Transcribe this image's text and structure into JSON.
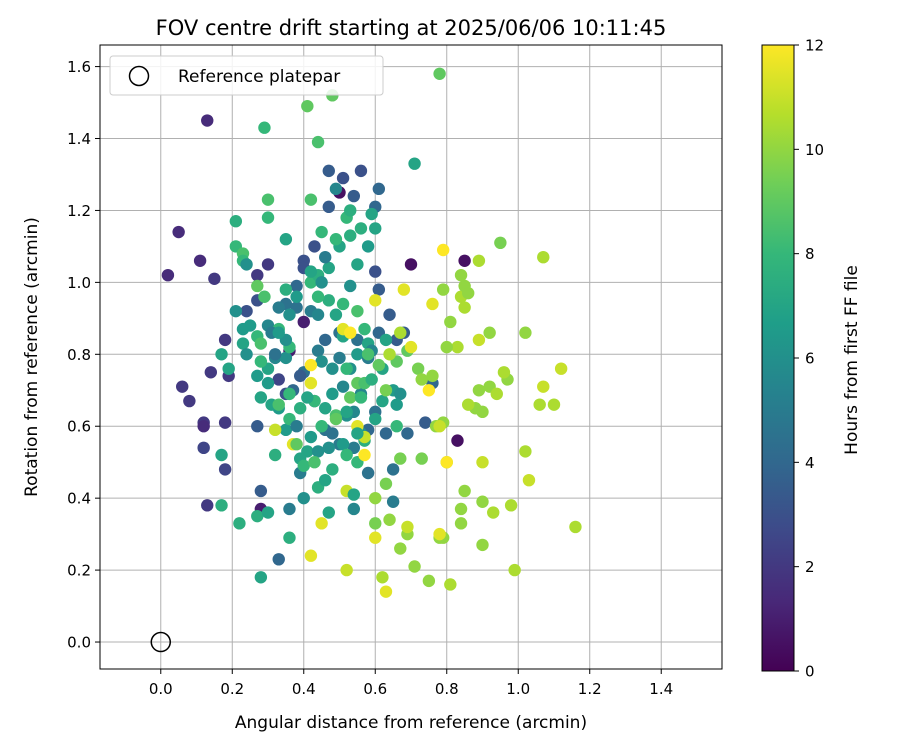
{
  "chart_data": {
    "type": "scatter",
    "title": "FOV centre drift starting at 2025/06/06 10:11:45",
    "xlabel": "Angular distance from reference (arcmin)",
    "ylabel": "Rotation from reference (arcmin)",
    "xlim": [
      -0.17,
      1.57
    ],
    "ylim": [
      -0.075,
      1.66
    ],
    "xticks": [
      "0.0",
      "0.2",
      "0.4",
      "0.6",
      "0.8",
      "1.0",
      "1.2",
      "1.4"
    ],
    "yticks": [
      "0.0",
      "0.2",
      "0.4",
      "0.6",
      "0.8",
      "1.0",
      "1.2",
      "1.4",
      "1.6"
    ],
    "grid": true,
    "legend": {
      "placement": "top-left",
      "entries": [
        "Reference platepar"
      ]
    },
    "reference_point": {
      "x": 0.0,
      "y": 0.0
    },
    "colorbar": {
      "label": "Hours from first FF file",
      "range": [
        0,
        12
      ],
      "ticks": [
        "0",
        "2",
        "4",
        "6",
        "8",
        "10",
        "12"
      ],
      "colormap": [
        "#440154",
        "#482878",
        "#3e4989",
        "#31688e",
        "#26828e",
        "#1f9e89",
        "#35b779",
        "#6ece58",
        "#b5de2b",
        "#fde725"
      ]
    },
    "points": [
      [
        0.13,
        1.45,
        1.5
      ],
      [
        0.05,
        1.14,
        1.5
      ],
      [
        0.02,
        1.02,
        1.5
      ],
      [
        0.11,
        1.06,
        1.5
      ],
      [
        0.15,
        1.01,
        2
      ],
      [
        0.18,
        0.84,
        2
      ],
      [
        0.06,
        0.71,
        2
      ],
      [
        0.08,
        0.67,
        2
      ],
      [
        0.14,
        0.75,
        2
      ],
      [
        0.19,
        0.74,
        2
      ],
      [
        0.12,
        0.61,
        2
      ],
      [
        0.12,
        0.6,
        1.5
      ],
      [
        0.18,
        0.61,
        2
      ],
      [
        0.18,
        0.48,
        2.5
      ],
      [
        0.12,
        0.54,
        2.5
      ],
      [
        0.13,
        0.38,
        2
      ],
      [
        0.28,
        0.37,
        1
      ],
      [
        0.36,
        0.81,
        1
      ],
      [
        0.4,
        0.89,
        1
      ],
      [
        0.5,
        1.25,
        0.5
      ],
      [
        0.7,
        1.05,
        0.5
      ],
      [
        0.85,
        1.06,
        0.5
      ],
      [
        0.83,
        0.56,
        0.5
      ],
      [
        0.24,
        0.92,
        3
      ],
      [
        0.27,
        0.95,
        3
      ],
      [
        0.3,
        1.05,
        2
      ],
      [
        0.27,
        1.02,
        2
      ],
      [
        0.33,
        0.73,
        2.5
      ],
      [
        0.35,
        0.69,
        3
      ],
      [
        0.27,
        0.6,
        3.5
      ],
      [
        0.28,
        0.42,
        3.5
      ],
      [
        0.33,
        0.23,
        4
      ],
      [
        0.38,
        0.99,
        4
      ],
      [
        0.4,
        1.06,
        3
      ],
      [
        0.4,
        1.04,
        3
      ],
      [
        0.43,
        1.1,
        3
      ],
      [
        0.47,
        1.21,
        3.5
      ],
      [
        0.47,
        1.31,
        3.5
      ],
      [
        0.51,
        1.29,
        3
      ],
      [
        0.56,
        1.31,
        3
      ],
      [
        0.54,
        1.24,
        3.5
      ],
      [
        0.6,
        1.21,
        4
      ],
      [
        0.6,
        1.03,
        3
      ],
      [
        0.61,
        0.98,
        3.5
      ],
      [
        0.61,
        0.86,
        4
      ],
      [
        0.64,
        0.91,
        3.5
      ],
      [
        0.66,
        0.84,
        3.5
      ],
      [
        0.68,
        0.86,
        3.5
      ],
      [
        0.58,
        0.79,
        5
      ],
      [
        0.55,
        0.84,
        4.5
      ],
      [
        0.5,
        0.86,
        4.5
      ],
      [
        0.46,
        0.84,
        4
      ],
      [
        0.44,
        0.81,
        5
      ],
      [
        0.4,
        0.75,
        4.5
      ],
      [
        0.39,
        0.74,
        3.5
      ],
      [
        0.37,
        0.7,
        4
      ],
      [
        0.43,
        0.67,
        3.5
      ],
      [
        0.46,
        0.59,
        4.5
      ],
      [
        0.48,
        0.58,
        4.5
      ],
      [
        0.5,
        0.55,
        5
      ],
      [
        0.54,
        0.54,
        5
      ],
      [
        0.58,
        0.47,
        4.5
      ],
      [
        0.58,
        0.59,
        4
      ],
      [
        0.6,
        0.64,
        4.5
      ],
      [
        0.63,
        0.58,
        4
      ],
      [
        0.69,
        0.58,
        4
      ],
      [
        0.74,
        0.61,
        3.5
      ],
      [
        0.76,
        0.72,
        4
      ],
      [
        0.65,
        0.48,
        4.5
      ],
      [
        0.65,
        0.39,
        5
      ],
      [
        0.54,
        0.37,
        5.5
      ],
      [
        0.39,
        0.47,
        5
      ],
      [
        0.36,
        0.37,
        5
      ],
      [
        0.42,
        0.92,
        5
      ],
      [
        0.44,
        0.91,
        5.5
      ],
      [
        0.38,
        0.93,
        4.5
      ],
      [
        0.35,
        0.94,
        4.5
      ],
      [
        0.33,
        0.93,
        5
      ],
      [
        0.3,
        0.88,
        5.5
      ],
      [
        0.32,
        0.79,
        5.5
      ],
      [
        0.35,
        0.79,
        6
      ],
      [
        0.45,
        0.78,
        6
      ],
      [
        0.48,
        0.76,
        6
      ],
      [
        0.53,
        0.76,
        6
      ],
      [
        0.51,
        0.71,
        5.5
      ],
      [
        0.56,
        0.69,
        5.5
      ],
      [
        0.54,
        0.64,
        5.5
      ],
      [
        0.52,
        0.63,
        6
      ],
      [
        0.56,
        0.58,
        6
      ],
      [
        0.51,
        0.55,
        6.5
      ],
      [
        0.47,
        0.54,
        6
      ],
      [
        0.42,
        0.57,
        6.5
      ],
      [
        0.41,
        0.53,
        7
      ],
      [
        0.39,
        0.51,
        7
      ],
      [
        0.35,
        0.59,
        6.5
      ],
      [
        0.33,
        0.65,
        6.5
      ],
      [
        0.31,
        0.66,
        7
      ],
      [
        0.28,
        0.68,
        7
      ],
      [
        0.27,
        0.74,
        6.5
      ],
      [
        0.3,
        0.72,
        6.5
      ],
      [
        0.23,
        0.87,
        6.5
      ],
      [
        0.21,
        0.92,
        6
      ],
      [
        0.23,
        0.83,
        7
      ],
      [
        0.19,
        0.76,
        7
      ],
      [
        0.17,
        0.8,
        7
      ],
      [
        0.17,
        0.52,
        7
      ],
      [
        0.17,
        0.38,
        7.5
      ],
      [
        0.22,
        0.33,
        7.5
      ],
      [
        0.27,
        0.35,
        7.5
      ],
      [
        0.28,
        0.18,
        7
      ],
      [
        0.3,
        0.36,
        7
      ],
      [
        0.36,
        0.29,
        7.5
      ],
      [
        0.47,
        0.36,
        7
      ],
      [
        0.44,
        0.43,
        7.5
      ],
      [
        0.48,
        0.48,
        7.5
      ],
      [
        0.52,
        0.52,
        8
      ],
      [
        0.55,
        0.5,
        8
      ],
      [
        0.57,
        0.56,
        7.5
      ],
      [
        0.6,
        0.62,
        7
      ],
      [
        0.62,
        0.67,
        7
      ],
      [
        0.65,
        0.7,
        6.5
      ],
      [
        0.67,
        0.69,
        6
      ],
      [
        0.66,
        0.66,
        6.5
      ],
      [
        0.62,
        0.76,
        7
      ],
      [
        0.58,
        0.83,
        7
      ],
      [
        0.55,
        0.8,
        6.5
      ],
      [
        0.51,
        0.85,
        7
      ],
      [
        0.49,
        0.91,
        7
      ],
      [
        0.47,
        0.95,
        7.5
      ],
      [
        0.44,
        0.96,
        8
      ],
      [
        0.42,
        1.0,
        8
      ],
      [
        0.44,
        1.02,
        7.5
      ],
      [
        0.47,
        1.04,
        7
      ],
      [
        0.5,
        1.1,
        7
      ],
      [
        0.53,
        1.13,
        7.5
      ],
      [
        0.56,
        1.15,
        7.5
      ],
      [
        0.59,
        1.19,
        7
      ],
      [
        0.6,
        1.15,
        7
      ],
      [
        0.58,
        1.1,
        6.5
      ],
      [
        0.52,
        1.18,
        8
      ],
      [
        0.49,
        1.12,
        8
      ],
      [
        0.45,
        1.14,
        8
      ],
      [
        0.42,
        1.23,
        8.5
      ],
      [
        0.44,
        1.39,
        8.5
      ],
      [
        0.41,
        1.49,
        9
      ],
      [
        0.48,
        1.52,
        9
      ],
      [
        0.29,
        1.43,
        8
      ],
      [
        0.3,
        1.23,
        8.5
      ],
      [
        0.3,
        1.18,
        8
      ],
      [
        0.21,
        1.17,
        7.5
      ],
      [
        0.21,
        1.1,
        8
      ],
      [
        0.23,
        1.08,
        8.5
      ],
      [
        0.23,
        1.06,
        8
      ],
      [
        0.27,
        0.99,
        9
      ],
      [
        0.29,
        0.96,
        8.5
      ],
      [
        0.27,
        0.85,
        8
      ],
      [
        0.28,
        0.83,
        8.5
      ],
      [
        0.33,
        0.87,
        8
      ],
      [
        0.36,
        0.82,
        8
      ],
      [
        0.36,
        0.69,
        8
      ],
      [
        0.33,
        0.66,
        8.5
      ],
      [
        0.36,
        0.62,
        8
      ],
      [
        0.43,
        0.67,
        8
      ],
      [
        0.45,
        0.6,
        8
      ],
      [
        0.49,
        0.63,
        8.5
      ],
      [
        0.53,
        0.68,
        9
      ],
      [
        0.55,
        0.72,
        9
      ],
      [
        0.57,
        0.72,
        8.5
      ],
      [
        0.61,
        0.77,
        9
      ],
      [
        0.63,
        0.7,
        9.5
      ],
      [
        0.66,
        0.78,
        9
      ],
      [
        0.69,
        0.81,
        9
      ],
      [
        0.72,
        0.76,
        9.5
      ],
      [
        0.73,
        0.73,
        10
      ],
      [
        0.76,
        0.74,
        10
      ],
      [
        0.77,
        0.6,
        10
      ],
      [
        0.79,
        0.61,
        10
      ],
      [
        0.8,
        0.5,
        10
      ],
      [
        0.73,
        0.51,
        9.5
      ],
      [
        0.67,
        0.51,
        9.5
      ],
      [
        0.63,
        0.44,
        9.5
      ],
      [
        0.6,
        0.4,
        10
      ],
      [
        0.6,
        0.33,
        9.5
      ],
      [
        0.64,
        0.34,
        10
      ],
      [
        0.67,
        0.26,
        10
      ],
      [
        0.69,
        0.3,
        10
      ],
      [
        0.71,
        0.21,
        10
      ],
      [
        0.75,
        0.17,
        10
      ],
      [
        0.78,
        0.29,
        10
      ],
      [
        0.79,
        0.29,
        10
      ],
      [
        0.81,
        0.16,
        10.5
      ],
      [
        0.84,
        0.33,
        10
      ],
      [
        0.84,
        0.37,
        10
      ],
      [
        0.85,
        0.42,
        10
      ],
      [
        0.9,
        0.39,
        10
      ],
      [
        0.93,
        0.36,
        10.5
      ],
      [
        0.9,
        0.27,
        10
      ],
      [
        0.98,
        0.38,
        10.5
      ],
      [
        0.99,
        0.2,
        10.5
      ],
      [
        1.02,
        0.53,
        10.5
      ],
      [
        1.03,
        0.45,
        11
      ],
      [
        1.06,
        0.66,
        10.5
      ],
      [
        1.1,
        0.66,
        10.5
      ],
      [
        1.12,
        0.76,
        11
      ],
      [
        1.07,
        0.71,
        11
      ],
      [
        1.16,
        0.32,
        10.5
      ],
      [
        0.97,
        0.73,
        10
      ],
      [
        0.96,
        0.75,
        10.5
      ],
      [
        0.92,
        0.71,
        10
      ],
      [
        0.94,
        0.69,
        10.5
      ],
      [
        0.88,
        0.65,
        10
      ],
      [
        0.9,
        0.64,
        10
      ],
      [
        0.86,
        0.66,
        10.5
      ],
      [
        0.89,
        0.7,
        10
      ],
      [
        0.83,
        0.82,
        10.5
      ],
      [
        0.8,
        0.82,
        10
      ],
      [
        0.81,
        0.89,
        10
      ],
      [
        0.84,
        0.96,
        10.5
      ],
      [
        0.85,
        0.99,
        10
      ],
      [
        0.84,
        1.02,
        10
      ],
      [
        0.86,
        0.97,
        10
      ],
      [
        0.85,
        0.93,
        10.5
      ],
      [
        0.92,
        0.86,
        10
      ],
      [
        0.89,
        0.84,
        11
      ],
      [
        1.02,
        0.86,
        10
      ],
      [
        0.95,
        1.11,
        9.5
      ],
      [
        1.07,
        1.07,
        10.5
      ],
      [
        0.79,
        0.98,
        10
      ],
      [
        0.78,
        1.58,
        9
      ],
      [
        0.71,
        1.33,
        7
      ],
      [
        0.89,
        1.06,
        10.5
      ],
      [
        0.79,
        1.09,
        12
      ],
      [
        0.76,
        0.94,
        11.5
      ],
      [
        0.68,
        0.98,
        11.5
      ],
      [
        0.67,
        0.86,
        10.5
      ],
      [
        0.64,
        0.8,
        10.5
      ],
      [
        0.7,
        0.82,
        11.5
      ],
      [
        0.75,
        0.7,
        12
      ],
      [
        0.78,
        0.6,
        11
      ],
      [
        0.8,
        0.5,
        12
      ],
      [
        0.78,
        0.3,
        11.5
      ],
      [
        0.9,
        0.5,
        11
      ],
      [
        0.63,
        0.14,
        11.5
      ],
      [
        0.62,
        0.18,
        10.5
      ],
      [
        0.69,
        0.32,
        11
      ],
      [
        0.6,
        0.29,
        11.5
      ],
      [
        0.57,
        0.52,
        12
      ],
      [
        0.55,
        0.6,
        11.5
      ],
      [
        0.57,
        0.57,
        11
      ],
      [
        0.6,
        0.95,
        11.5
      ],
      [
        0.51,
        0.87,
        11.5
      ],
      [
        0.53,
        0.86,
        12
      ],
      [
        0.52,
        0.42,
        11
      ],
      [
        0.45,
        0.33,
        11.5
      ],
      [
        0.42,
        0.24,
        11.5
      ],
      [
        0.52,
        0.2,
        11
      ],
      [
        0.42,
        0.77,
        12
      ],
      [
        0.42,
        0.72,
        11.5
      ],
      [
        0.37,
        0.55,
        11.5
      ],
      [
        0.32,
        0.59,
        11
      ],
      [
        0.52,
        0.76,
        8
      ],
      [
        0.44,
        0.53,
        6
      ],
      [
        0.54,
        0.41,
        7
      ],
      [
        0.38,
        0.6,
        5
      ],
      [
        0.59,
        0.81,
        5.5
      ],
      [
        0.5,
        0.79,
        5
      ],
      [
        0.53,
        0.99,
        6
      ],
      [
        0.45,
        1.0,
        6
      ],
      [
        0.35,
        0.84,
        6
      ],
      [
        0.25,
        0.88,
        6.5
      ],
      [
        0.24,
        1.05,
        6
      ],
      [
        0.24,
        0.8,
        6
      ],
      [
        0.31,
        0.86,
        5
      ],
      [
        0.32,
        0.8,
        4.5
      ],
      [
        0.46,
        1.07,
        5
      ],
      [
        0.49,
        1.26,
        5.5
      ],
      [
        0.61,
        1.26,
        4
      ],
      [
        0.53,
        1.2,
        7.5
      ],
      [
        0.35,
        1.12,
        7
      ],
      [
        0.35,
        0.98,
        7.5
      ],
      [
        0.55,
        1.05,
        7
      ],
      [
        0.63,
        0.84,
        7
      ],
      [
        0.59,
        0.73,
        7.5
      ],
      [
        0.66,
        0.6,
        8
      ],
      [
        0.46,
        0.45,
        7
      ],
      [
        0.4,
        0.4,
        6
      ],
      [
        0.32,
        0.52,
        7.5
      ],
      [
        0.38,
        0.55,
        9
      ],
      [
        0.4,
        0.49,
        8
      ],
      [
        0.43,
        0.5,
        8.5
      ],
      [
        0.49,
        0.62,
        9
      ],
      [
        0.46,
        0.65,
        7
      ],
      [
        0.56,
        0.68,
        8
      ],
      [
        0.58,
        0.8,
        8.5
      ],
      [
        0.57,
        0.87,
        8
      ],
      [
        0.55,
        0.92,
        8.5
      ],
      [
        0.51,
        0.94,
        8
      ],
      [
        0.42,
        1.03,
        7
      ],
      [
        0.38,
        0.96,
        6.5
      ],
      [
        0.36,
        0.91,
        6
      ],
      [
        0.33,
        0.86,
        6.5
      ],
      [
        0.3,
        0.76,
        7
      ],
      [
        0.28,
        0.78,
        8
      ],
      [
        0.39,
        0.65,
        7.5
      ],
      [
        0.41,
        0.68,
        7
      ],
      [
        0.48,
        0.69,
        6.5
      ],
      [
        0.52,
        0.64,
        7
      ],
      [
        0.55,
        0.58,
        7
      ]
    ]
  }
}
